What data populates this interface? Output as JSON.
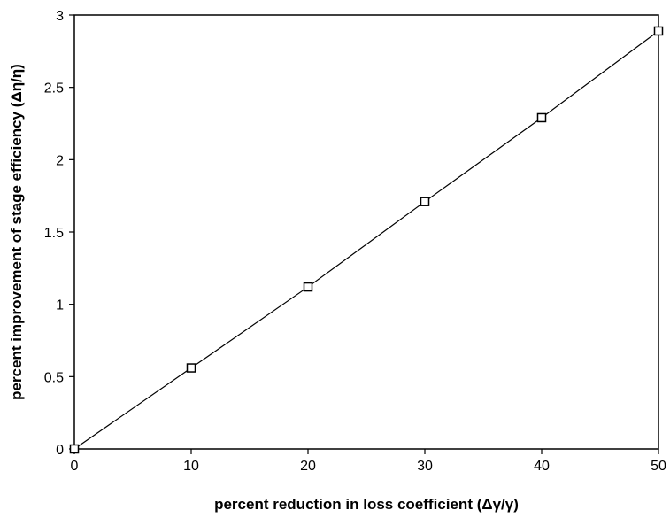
{
  "chart_data": {
    "type": "scatter",
    "xlabel": "percent reduction in loss coefficient (Δγ/γ)",
    "ylabel": "percent improvement of stage efficiency (Δη/η)",
    "xlim": [
      0,
      50
    ],
    "ylim": [
      0,
      3
    ],
    "x_ticks": [
      "0",
      "10",
      "20",
      "30",
      "40",
      "50"
    ],
    "y_ticks": [
      "0",
      "0.5",
      "1",
      "1.5",
      "2",
      "2.5",
      "3"
    ],
    "x_tick_values": [
      0,
      10,
      20,
      30,
      40,
      50
    ],
    "y_tick_values": [
      0,
      0.5,
      1,
      1.5,
      2,
      2.5,
      3
    ],
    "grid": false,
    "legend": "none",
    "marker": "open-square",
    "line_connected": true,
    "series": [
      {
        "x": [
          0,
          10,
          20,
          30,
          40,
          50
        ],
        "y": [
          0,
          0.56,
          1.12,
          1.71,
          2.29,
          2.89
        ]
      }
    ],
    "colors": {
      "line": "#000000",
      "marker_edge": "#000000",
      "background": "#ffffff"
    }
  }
}
